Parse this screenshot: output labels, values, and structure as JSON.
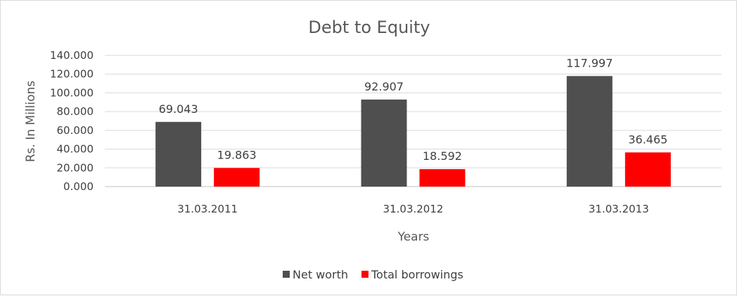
{
  "chart_data": {
    "type": "bar",
    "title": "Debt to Equity",
    "xlabel": "Years",
    "ylabel": "Rs. In Millions",
    "categories": [
      "31.03.2011",
      "31.03.2012",
      "31.03.2013"
    ],
    "series": [
      {
        "name": "Net worth",
        "color": "#4f4f4f",
        "values": [
          69.043,
          92.907,
          117.997
        ],
        "labels": [
          "69.043",
          "92.907",
          "117.997"
        ]
      },
      {
        "name": "Total borrowings",
        "color": "#ff0000",
        "values": [
          19.863,
          18.592,
          36.465
        ],
        "labels": [
          "19.863",
          "18.592",
          "36.465"
        ]
      }
    ],
    "ylim": [
      0,
      140
    ],
    "yticks": [
      "0.000",
      "20.000",
      "40.000",
      "60.000",
      "80.000",
      "100.000",
      "120.000",
      "140.000"
    ],
    "grid": true,
    "legend_position": "bottom"
  }
}
